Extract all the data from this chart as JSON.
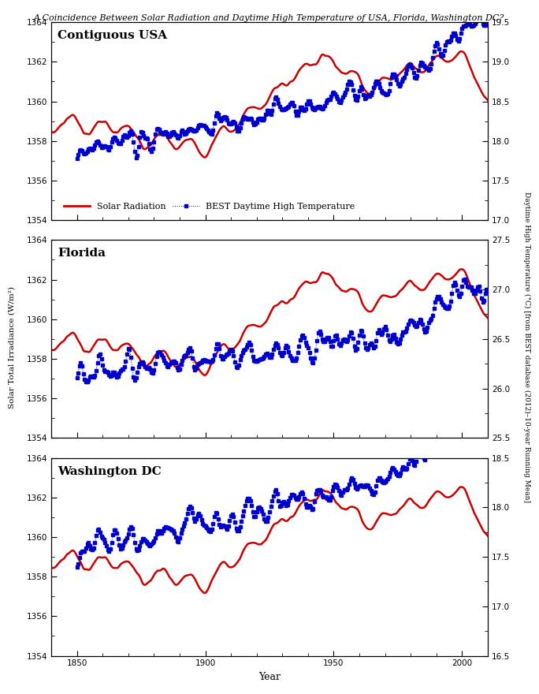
{
  "title": "A Coincidence Between Solar Radiation and Daytime High Temperature of USA, Florida, Washington DC?",
  "ylabel_left": "Solar Total Irradiance (W/m²)",
  "ylabel_right": "Daytime High Temperature (°C) [from BEST database (2012)–10-year Running Mean]",
  "xlabel": "Year",
  "panels": [
    {
      "label": "Contiguous USA",
      "ylim_right": [
        17.0,
        19.5
      ],
      "yticks_right": [
        17.0,
        17.5,
        18.0,
        18.5,
        19.0,
        19.5
      ],
      "temp_base": 17.8,
      "temp_trend_rate": 0.0065,
      "temp_trend_accel_year": 1970,
      "temp_trend_accel": 0.025,
      "temp_cycle_amp": 0.18
    },
    {
      "label": "Florida",
      "ylim_right": [
        25.5,
        27.5
      ],
      "yticks_right": [
        25.5,
        26.0,
        26.5,
        27.0,
        27.5
      ],
      "temp_base": 26.1,
      "temp_trend_rate": 0.003,
      "temp_trend_accel_year": 1975,
      "temp_trend_accel": 0.018,
      "temp_cycle_amp": 0.15
    },
    {
      "label": "Washington DC",
      "ylim_right": [
        16.5,
        18.5
      ],
      "yticks_right": [
        16.5,
        17.0,
        17.5,
        18.0,
        18.5
      ],
      "temp_base": 17.5,
      "temp_trend_rate": 0.006,
      "temp_trend_accel_year": 1970,
      "temp_trend_accel": 0.022,
      "temp_cycle_amp": 0.2
    }
  ],
  "ylim_left": [
    1354,
    1364
  ],
  "yticks_left": [
    1354,
    1356,
    1358,
    1360,
    1362,
    1364
  ],
  "xlim": [
    1840,
    2010
  ],
  "xticks": [
    1850,
    1900,
    1950,
    2000
  ],
  "solar_color": "#cc0000",
  "temp_color": "#0000cc",
  "legend_solar": "Solar Radiation",
  "legend_temp": "BEST Daytime High Temperature",
  "background_color": "#ffffff"
}
